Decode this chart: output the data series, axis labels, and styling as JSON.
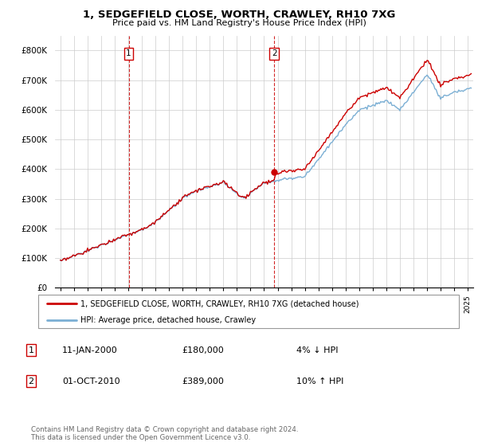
{
  "title": "1, SEDGEFIELD CLOSE, WORTH, CRAWLEY, RH10 7XG",
  "subtitle": "Price paid vs. HM Land Registry's House Price Index (HPI)",
  "sale1_date": "11-JAN-2000",
  "sale1_price": 180000,
  "sale1_hpi": "4% ↓ HPI",
  "sale2_date": "01-OCT-2010",
  "sale2_price": 389000,
  "sale2_hpi": "10% ↑ HPI",
  "legend_house": "1, SEDGEFIELD CLOSE, WORTH, CRAWLEY, RH10 7XG (detached house)",
  "legend_hpi": "HPI: Average price, detached house, Crawley",
  "footnote": "Contains HM Land Registry data © Crown copyright and database right 2024.\nThis data is licensed under the Open Government Licence v3.0.",
  "house_color": "#cc0000",
  "hpi_color": "#7bafd4",
  "ylim": [
    0,
    850000
  ],
  "yticks": [
    0,
    100000,
    200000,
    300000,
    400000,
    500000,
    600000,
    700000,
    800000
  ],
  "ytick_labels": [
    "£0",
    "£100K",
    "£200K",
    "£300K",
    "£400K",
    "£500K",
    "£600K",
    "£700K",
    "£800K"
  ],
  "sale1_x": 2000.03,
  "sale2_x": 2010.75,
  "background_color": "#ffffff",
  "grid_color": "#cccccc",
  "xlim_left": 1994.6,
  "xlim_right": 2025.4
}
